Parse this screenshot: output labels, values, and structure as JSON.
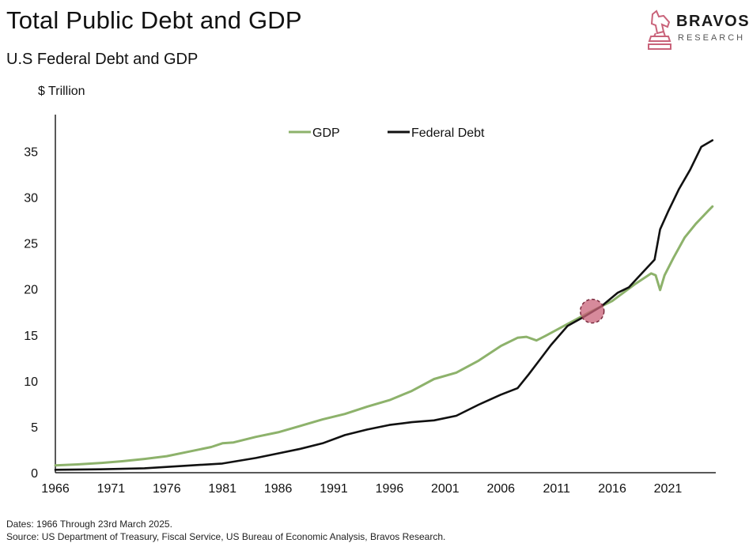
{
  "header": {
    "title": "Total Public Debt and GDP",
    "subtitle": "U.S Federal Debt and GDP",
    "unit_label": "$ Trillion"
  },
  "logo": {
    "name": "BRAVOS",
    "tagline": "RESEARCH",
    "icon": "knight-chess-icon"
  },
  "footer": {
    "dates": "Dates: 1966 Through 23rd March 2025.",
    "source": "Source: US Department of Treasury, Fiscal Service, US Bureau of Economic Analysis, Bravos Research."
  },
  "colors": {
    "gdp": "#8db26b",
    "debt": "#111111",
    "marker": "#c9637a",
    "axis": "#222222"
  },
  "chart_data": {
    "type": "line",
    "title": "U.S Federal Debt and GDP",
    "ylabel": "$ Trillion",
    "xlabel": "",
    "xlim": [
      1966,
      2025.3
    ],
    "ylim": [
      0,
      39
    ],
    "x_ticks": [
      1966,
      1971,
      1976,
      1981,
      1986,
      1991,
      1996,
      2001,
      2006,
      2011,
      2016,
      2021
    ],
    "y_ticks": [
      0,
      5,
      10,
      15,
      20,
      25,
      30,
      35
    ],
    "legend": [
      "GDP",
      "Federal Debt"
    ],
    "legend_position": "top-center",
    "series": [
      {
        "name": "GDP",
        "color": "#8db26b",
        "points": [
          [
            1966,
            0.8
          ],
          [
            1968,
            0.9
          ],
          [
            1970,
            1.05
          ],
          [
            1972,
            1.25
          ],
          [
            1974,
            1.5
          ],
          [
            1976,
            1.8
          ],
          [
            1978,
            2.3
          ],
          [
            1980,
            2.8
          ],
          [
            1981,
            3.2
          ],
          [
            1982,
            3.3
          ],
          [
            1984,
            3.9
          ],
          [
            1986,
            4.4
          ],
          [
            1988,
            5.1
          ],
          [
            1990,
            5.8
          ],
          [
            1992,
            6.4
          ],
          [
            1994,
            7.2
          ],
          [
            1996,
            7.9
          ],
          [
            1998,
            8.9
          ],
          [
            2000,
            10.2
          ],
          [
            2002,
            10.9
          ],
          [
            2004,
            12.2
          ],
          [
            2006,
            13.8
          ],
          [
            2007.5,
            14.7
          ],
          [
            2008.3,
            14.8
          ],
          [
            2009.2,
            14.4
          ],
          [
            2010,
            14.9
          ],
          [
            2012,
            16.2
          ],
          [
            2014,
            17.5
          ],
          [
            2016,
            18.7
          ],
          [
            2018,
            20.5
          ],
          [
            2019.5,
            21.7
          ],
          [
            2019.9,
            21.5
          ],
          [
            2020.3,
            19.9
          ],
          [
            2020.7,
            21.5
          ],
          [
            2021.5,
            23.4
          ],
          [
            2022.5,
            25.6
          ],
          [
            2023.5,
            27.1
          ],
          [
            2024.6,
            28.5
          ],
          [
            2025,
            29.0
          ]
        ]
      },
      {
        "name": "Federal Debt",
        "color": "#111111",
        "points": [
          [
            1966,
            0.32
          ],
          [
            1970,
            0.37
          ],
          [
            1974,
            0.48
          ],
          [
            1978,
            0.78
          ],
          [
            1981,
            1.0
          ],
          [
            1984,
            1.6
          ],
          [
            1986,
            2.1
          ],
          [
            1988,
            2.6
          ],
          [
            1990,
            3.2
          ],
          [
            1992,
            4.1
          ],
          [
            1994,
            4.7
          ],
          [
            1996,
            5.2
          ],
          [
            1998,
            5.5
          ],
          [
            2000,
            5.7
          ],
          [
            2002,
            6.2
          ],
          [
            2004,
            7.4
          ],
          [
            2006,
            8.5
          ],
          [
            2007.5,
            9.2
          ],
          [
            2008.5,
            10.7
          ],
          [
            2009.5,
            12.3
          ],
          [
            2010.5,
            13.9
          ],
          [
            2012,
            16.0
          ],
          [
            2013.5,
            17.0
          ],
          [
            2015,
            18.1
          ],
          [
            2016.5,
            19.6
          ],
          [
            2017.5,
            20.2
          ],
          [
            2018.5,
            21.5
          ],
          [
            2019.8,
            23.2
          ],
          [
            2020.3,
            26.5
          ],
          [
            2021,
            28.4
          ],
          [
            2022,
            30.9
          ],
          [
            2023,
            33.0
          ],
          [
            2024,
            35.5
          ],
          [
            2025,
            36.2
          ]
        ]
      }
    ],
    "annotations": [
      {
        "type": "circle-marker",
        "label": "",
        "x": 2014.2,
        "y": 17.6
      }
    ]
  }
}
